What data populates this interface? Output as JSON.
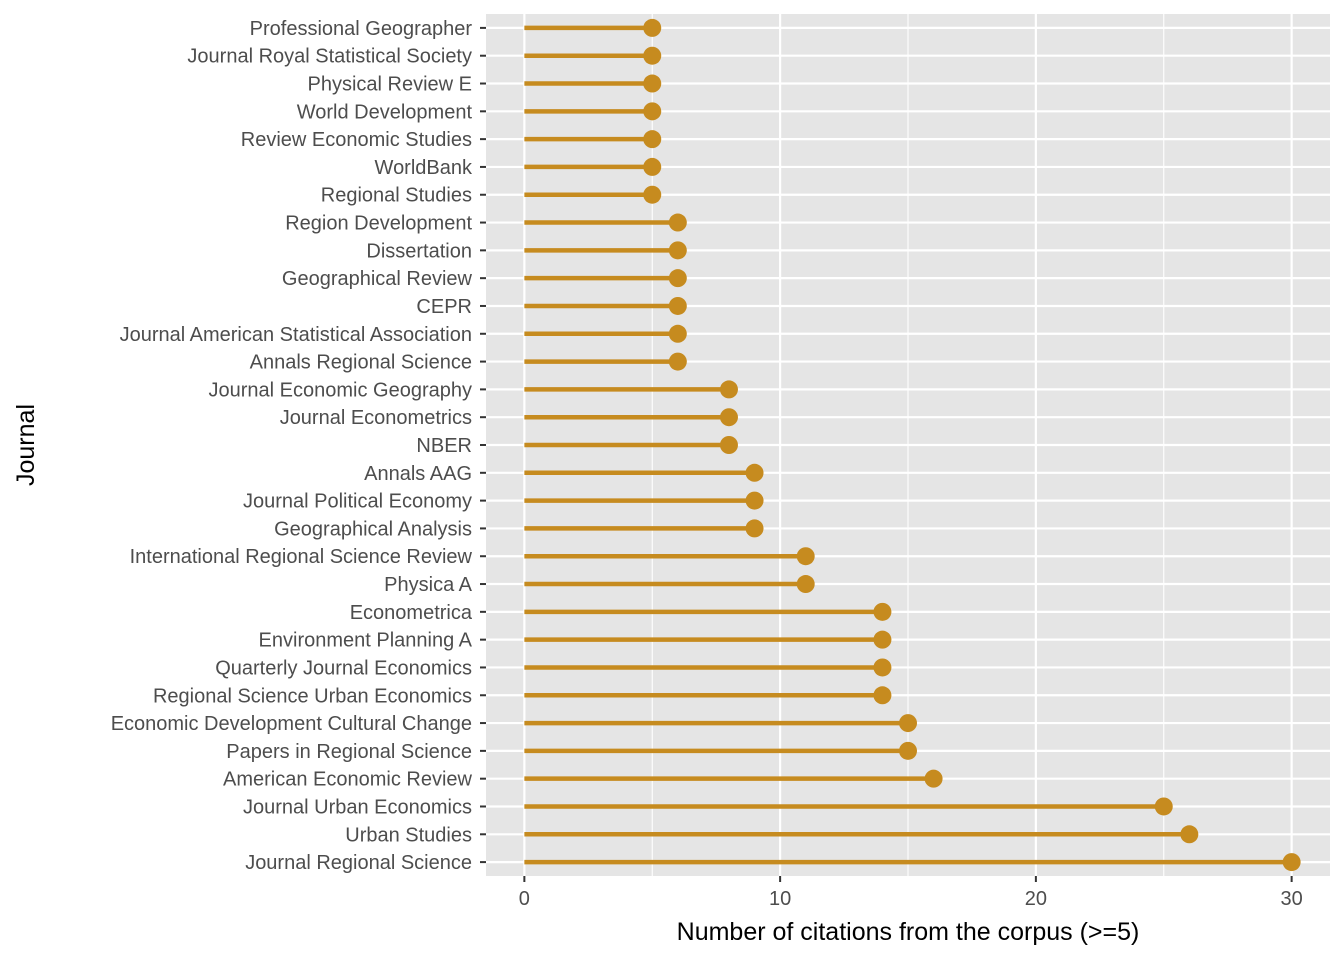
{
  "chart_data": {
    "type": "lollipop",
    "xlabel": "Number of citations from the corpus (>=5)",
    "ylabel": "Journal",
    "xlim": [
      -1.5,
      31.5
    ],
    "xticks": [
      0,
      10,
      20,
      30
    ],
    "grid": true,
    "legend": "none",
    "colors": {
      "mark": "#c68b1f",
      "panel": "#e5e5e5",
      "grid": "#ffffff",
      "tick_text": "#4d4d4d",
      "tick_mark": "#333333"
    },
    "categories": [
      "Professional Geographer",
      "Journal Royal Statistical Society",
      "Physical Review E",
      "World Development",
      "Review Economic Studies",
      "WorldBank",
      "Regional Studies",
      "Region Development",
      "Dissertation",
      "Geographical Review",
      "CEPR",
      "Journal American Statistical Association",
      "Annals Regional Science",
      "Journal Economic Geography",
      "Journal Econometrics",
      "NBER",
      "Annals AAG",
      "Journal Political Economy",
      "Geographical Analysis",
      "International Regional Science Review",
      "Physica A",
      "Econometrica",
      "Environment Planning A",
      "Quarterly Journal Economics",
      "Regional Science Urban Economics",
      "Economic Development Cultural Change",
      "Papers in Regional Science",
      "American Economic Review",
      "Journal Urban Economics",
      "Urban Studies",
      "Journal Regional Science"
    ],
    "values": [
      5,
      5,
      5,
      5,
      5,
      5,
      5,
      6,
      6,
      6,
      6,
      6,
      6,
      8,
      8,
      8,
      9,
      9,
      9,
      11,
      11,
      14,
      14,
      14,
      14,
      15,
      15,
      16,
      25,
      26,
      30
    ]
  }
}
